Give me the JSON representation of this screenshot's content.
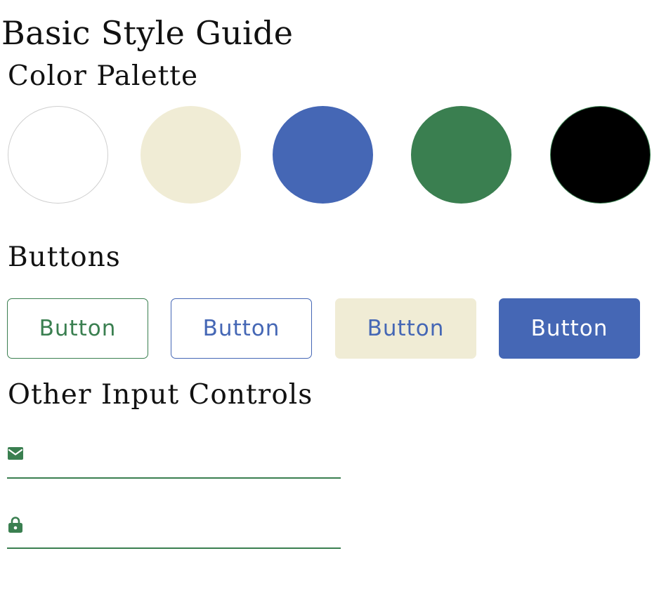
{
  "page": {
    "title": "Basic Style Guide"
  },
  "palette": {
    "heading": "Color Palette",
    "swatches": [
      {
        "name": "white",
        "fill": "#ffffff",
        "border": "#cfcfcf"
      },
      {
        "name": "cream",
        "fill": "#f0ecd5",
        "border": "#f0ecd5"
      },
      {
        "name": "blue",
        "fill": "#4567b5",
        "border": "#4567b5"
      },
      {
        "name": "green",
        "fill": "#3a7f50",
        "border": "#3a7f50"
      },
      {
        "name": "black",
        "fill": "#000000",
        "border": "#3a7f50"
      }
    ]
  },
  "buttons": {
    "heading": "Buttons",
    "items": [
      {
        "label": "Button",
        "style": "outline-green",
        "text_color": "#3a7f50",
        "bg": "#ffffff",
        "border": "#3a7f50"
      },
      {
        "label": "Button",
        "style": "outline-blue",
        "text_color": "#4567b5",
        "bg": "#ffffff",
        "border": "#4567b5"
      },
      {
        "label": "Button",
        "style": "cream-filled",
        "text_color": "#4567b5",
        "bg": "#f0ecd5",
        "border": "#f0ecd5"
      },
      {
        "label": "Button",
        "style": "blue-filled",
        "text_color": "#ffffff",
        "bg": "#4567b5",
        "border": "#4567b5"
      }
    ]
  },
  "inputs": {
    "heading": "Other Input Controls",
    "accent": "#3a7f50",
    "fields": [
      {
        "icon": "envelope-icon",
        "value": "",
        "placeholder": ""
      },
      {
        "icon": "lock-icon",
        "value": "",
        "placeholder": ""
      }
    ]
  }
}
